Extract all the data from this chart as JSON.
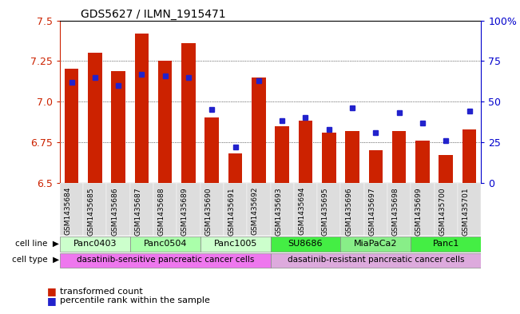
{
  "title": "GDS5627 / ILMN_1915471",
  "samples": [
    "GSM1435684",
    "GSM1435685",
    "GSM1435686",
    "GSM1435687",
    "GSM1435688",
    "GSM1435689",
    "GSM1435690",
    "GSM1435691",
    "GSM1435692",
    "GSM1435693",
    "GSM1435694",
    "GSM1435695",
    "GSM1435696",
    "GSM1435697",
    "GSM1435698",
    "GSM1435699",
    "GSM1435700",
    "GSM1435701"
  ],
  "bar_values": [
    7.2,
    7.3,
    7.19,
    7.42,
    7.25,
    7.36,
    6.9,
    6.68,
    7.15,
    6.85,
    6.88,
    6.81,
    6.82,
    6.7,
    6.82,
    6.76,
    6.67,
    6.83
  ],
  "percentile_values": [
    62,
    65,
    60,
    67,
    66,
    65,
    45,
    22,
    63,
    38,
    40,
    33,
    46,
    31,
    43,
    37,
    26,
    44
  ],
  "ylim_left": [
    6.5,
    7.5
  ],
  "ylim_right": [
    0,
    100
  ],
  "yticks_left": [
    6.5,
    6.75,
    7.0,
    7.25,
    7.5
  ],
  "yticks_right": [
    0,
    25,
    50,
    75,
    100
  ],
  "ytick_labels_right": [
    "0",
    "25",
    "50",
    "75",
    "100%"
  ],
  "bar_color": "#cc2200",
  "percentile_color": "#2222cc",
  "bar_width": 0.6,
  "cell_lines": [
    {
      "label": "Panc0403",
      "start": 0,
      "end": 2,
      "color": "#ccffcc"
    },
    {
      "label": "Panc0504",
      "start": 3,
      "end": 5,
      "color": "#aaffaa"
    },
    {
      "label": "Panc1005",
      "start": 6,
      "end": 8,
      "color": "#ccffcc"
    },
    {
      "label": "SU8686",
      "start": 9,
      "end": 11,
      "color": "#44ee44"
    },
    {
      "label": "MiaPaCa2",
      "start": 12,
      "end": 14,
      "color": "#88ee88"
    },
    {
      "label": "Panc1",
      "start": 15,
      "end": 17,
      "color": "#44ee44"
    }
  ],
  "cell_types": [
    {
      "label": "dasatinib-sensitive pancreatic cancer cells",
      "start": 0,
      "end": 8,
      "color": "#ee77ee"
    },
    {
      "label": "dasatinib-resistant pancreatic cancer cells",
      "start": 9,
      "end": 17,
      "color": "#ddaadd"
    }
  ],
  "legend_items": [
    {
      "label": "transformed count",
      "color": "#cc2200"
    },
    {
      "label": "percentile rank within the sample",
      "color": "#2222cc"
    }
  ],
  "bar_color_hex": "#cc2200",
  "percentile_color_hex": "#2222cc",
  "left_axis_color": "#cc2200",
  "right_axis_color": "#0000cc",
  "title_fontsize": 10,
  "tick_label_fontsize": 7,
  "row_label_fontsize": 8,
  "legend_fontsize": 8
}
